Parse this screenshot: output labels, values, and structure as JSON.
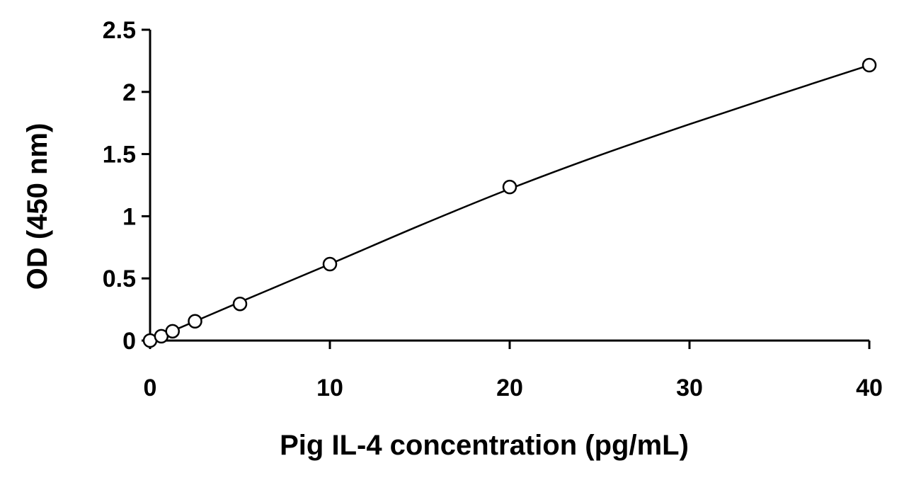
{
  "chart_data": {
    "type": "scatter",
    "title": "",
    "xlabel": "Pig IL-4 concentration (pg/mL)",
    "ylabel": "OD (450 nm)",
    "xlim": [
      0,
      40
    ],
    "ylim": [
      0,
      2.5
    ],
    "x_ticks": [
      "0",
      "10",
      "20",
      "30",
      "40"
    ],
    "y_ticks": [
      "0",
      "0.5",
      "1",
      "1.5",
      "2",
      "2.5"
    ],
    "grid": false,
    "legend": "none",
    "series": [
      {
        "marker": "open-circle",
        "x": [
          0,
          0.625,
          1.25,
          2.5,
          5,
          10,
          20,
          40
        ],
        "y": [
          0.0,
          0.035,
          0.075,
          0.155,
          0.295,
          0.615,
          1.235,
          2.215
        ]
      }
    ],
    "fit_curve": {
      "style": "solid",
      "x": [
        0,
        5,
        10,
        15,
        20,
        25,
        30,
        35,
        40
      ],
      "y": [
        0.0,
        0.31,
        0.615,
        0.925,
        1.22,
        1.49,
        1.74,
        1.98,
        2.215
      ]
    },
    "colors": {
      "axis": "#000000",
      "line": "#000000",
      "marker_fill": "#ffffff",
      "marker_stroke": "#000000"
    }
  }
}
